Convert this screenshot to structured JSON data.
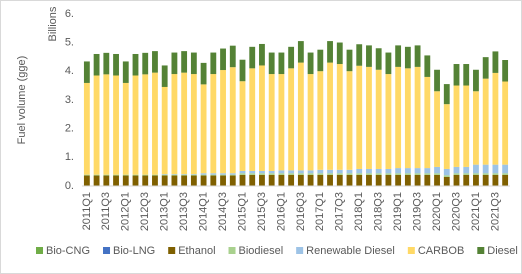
{
  "chart_data": {
    "type": "stacked-bar",
    "y_label": "Fuel volume (gge)",
    "y_unit_label": "Billions",
    "categories": [
      "2011Q1",
      null,
      "2011Q3",
      null,
      "2012Q1",
      null,
      "2012Q3",
      null,
      "2013Q1",
      null,
      "2013Q3",
      null,
      "2014Q1",
      null,
      "2014Q3",
      null,
      "2015Q1",
      null,
      "2015Q3",
      null,
      "2016Q1",
      null,
      "2016Q3",
      null,
      "2017Q1",
      null,
      "2017Q3",
      null,
      "2018Q1",
      null,
      "2018Q3",
      null,
      "2019Q1",
      null,
      "2019Q3",
      null,
      "2020Q1",
      null,
      "2020Q3",
      null,
      "2021Q1",
      null,
      "2021Q3",
      null
    ],
    "series": [
      {
        "name": "Bio-CNG",
        "color": "#70ad47",
        "values": [
          0.01,
          0.01,
          0.01,
          0.01,
          0.01,
          0.01,
          0.01,
          0.01,
          0.01,
          0.01,
          0.01,
          0.01,
          0.01,
          0.01,
          0.01,
          0.01,
          0.01,
          0.01,
          0.01,
          0.01,
          0.01,
          0.01,
          0.01,
          0.01,
          0.01,
          0.01,
          0.01,
          0.01,
          0.01,
          0.01,
          0.01,
          0.01,
          0.01,
          0.01,
          0.01,
          0.01,
          0.01,
          0.01,
          0.01,
          0.01,
          0.01,
          0.01,
          0.01,
          0.01
        ]
      },
      {
        "name": "Bio-LNG",
        "color": "#4472c4",
        "values": [
          0.005,
          0.005,
          0.005,
          0.005,
          0.005,
          0.005,
          0.005,
          0.005,
          0.005,
          0.005,
          0.005,
          0.005,
          0.005,
          0.005,
          0.005,
          0.005,
          0.005,
          0.005,
          0.005,
          0.005,
          0.005,
          0.005,
          0.005,
          0.005,
          0.005,
          0.005,
          0.005,
          0.005,
          0.005,
          0.005,
          0.005,
          0.005,
          0.005,
          0.005,
          0.005,
          0.005,
          0.005,
          0.005,
          0.005,
          0.005,
          0.005,
          0.005,
          0.005,
          0.005
        ]
      },
      {
        "name": "Ethanol",
        "color": "#7f6000",
        "values": [
          0.35,
          0.35,
          0.35,
          0.35,
          0.35,
          0.35,
          0.35,
          0.35,
          0.35,
          0.35,
          0.35,
          0.35,
          0.35,
          0.35,
          0.35,
          0.35,
          0.37,
          0.37,
          0.37,
          0.37,
          0.37,
          0.37,
          0.37,
          0.37,
          0.37,
          0.37,
          0.37,
          0.37,
          0.37,
          0.37,
          0.37,
          0.37,
          0.37,
          0.37,
          0.37,
          0.37,
          0.37,
          0.3,
          0.37,
          0.37,
          0.37,
          0.37,
          0.37,
          0.37
        ]
      },
      {
        "name": "Biodiesel",
        "color": "#a9d18e",
        "values": [
          0.03,
          0.03,
          0.03,
          0.03,
          0.03,
          0.03,
          0.03,
          0.03,
          0.03,
          0.03,
          0.03,
          0.03,
          0.03,
          0.03,
          0.03,
          0.03,
          0.06,
          0.06,
          0.06,
          0.06,
          0.06,
          0.06,
          0.06,
          0.06,
          0.06,
          0.06,
          0.06,
          0.06,
          0.06,
          0.06,
          0.06,
          0.06,
          0.06,
          0.06,
          0.06,
          0.06,
          0.06,
          0.06,
          0.06,
          0.06,
          0.06,
          0.06,
          0.06,
          0.06
        ]
      },
      {
        "name": "Renewable Diesel",
        "color": "#9dc3e6",
        "values": [
          0,
          0,
          0,
          0,
          0,
          0,
          0,
          0,
          0.02,
          0.02,
          0.02,
          0.02,
          0.05,
          0.05,
          0.05,
          0.05,
          0.08,
          0.08,
          0.08,
          0.08,
          0.1,
          0.1,
          0.1,
          0.1,
          0.12,
          0.12,
          0.12,
          0.12,
          0.15,
          0.15,
          0.15,
          0.15,
          0.18,
          0.18,
          0.18,
          0.18,
          0.22,
          0.22,
          0.22,
          0.22,
          0.3,
          0.3,
          0.3,
          0.3
        ]
      },
      {
        "name": "CARBOB",
        "color": "#ffd966",
        "values": [
          3.2,
          3.46,
          3.5,
          3.46,
          3.2,
          3.46,
          3.5,
          3.56,
          3.04,
          3.49,
          3.54,
          3.49,
          3.1,
          3.46,
          3.6,
          3.7,
          3.13,
          3.58,
          3.68,
          3.38,
          3.36,
          3.56,
          3.76,
          3.36,
          3.44,
          3.74,
          3.69,
          3.44,
          3.6,
          3.56,
          3.46,
          3.31,
          3.53,
          3.48,
          3.53,
          3.18,
          2.64,
          2.26,
          2.84,
          2.84,
          2.56,
          3.0,
          3.2,
          2.9
        ]
      },
      {
        "name": "Diesel",
        "color": "#548235",
        "values": [
          0.75,
          0.75,
          0.75,
          0.75,
          0.75,
          0.75,
          0.75,
          0.75,
          0.75,
          0.75,
          0.75,
          0.75,
          0.75,
          0.75,
          0.75,
          0.75,
          0.75,
          0.75,
          0.75,
          0.75,
          0.75,
          0.75,
          0.75,
          0.75,
          0.75,
          0.75,
          0.75,
          0.75,
          0.75,
          0.75,
          0.75,
          0.75,
          0.75,
          0.75,
          0.75,
          0.75,
          0.75,
          0.7,
          0.75,
          0.75,
          0.75,
          0.75,
          0.75,
          0.75
        ]
      }
    ],
    "ylim": [
      0,
      6
    ],
    "yticks": [
      {
        "value": 0,
        "label": "0."
      },
      {
        "value": 1,
        "label": "1."
      },
      {
        "value": 2,
        "label": "2."
      },
      {
        "value": 3,
        "label": "3."
      },
      {
        "value": 4,
        "label": "4."
      },
      {
        "value": 5,
        "label": "5."
      },
      {
        "value": 6,
        "label": "6."
      }
    ],
    "legend": "bottom",
    "grid": false
  }
}
